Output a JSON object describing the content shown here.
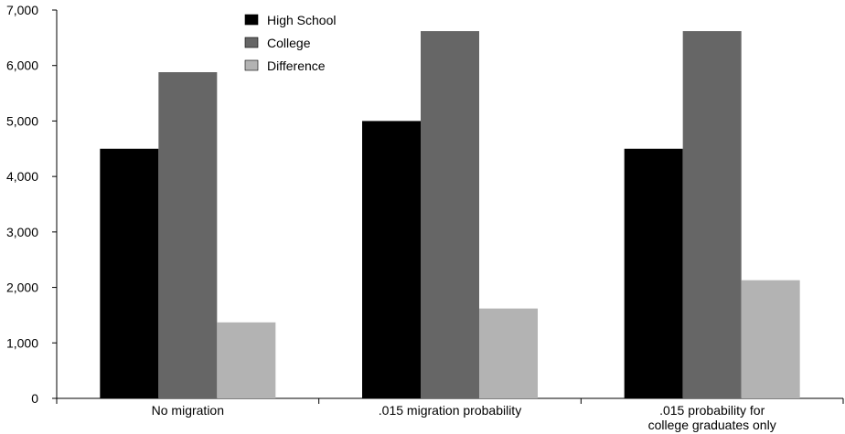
{
  "chart_data": {
    "type": "bar",
    "title": "",
    "xlabel": "",
    "ylabel": "",
    "ylim": [
      0,
      7000
    ],
    "yticks": [
      0,
      1000,
      2000,
      3000,
      4000,
      5000,
      6000,
      7000
    ],
    "ytick_labels": [
      "0",
      "1,000",
      "2,000",
      "3,000",
      "4,000",
      "5,000",
      "6,000",
      "7,000"
    ],
    "grid": false,
    "legend_position": "top-center",
    "categories": [
      [
        "No migration"
      ],
      [
        ".015 migration probability"
      ],
      [
        ".015 probability for",
        "college graduates only"
      ]
    ],
    "series": [
      {
        "name": "High School",
        "color": "#000000",
        "values": [
          4500,
          5000,
          4500
        ]
      },
      {
        "name": "College",
        "color": "#666666",
        "values": [
          5880,
          6620,
          6620
        ]
      },
      {
        "name": "Difference",
        "color": "#b3b3b3",
        "values": [
          1370,
          1620,
          2130
        ]
      }
    ]
  }
}
